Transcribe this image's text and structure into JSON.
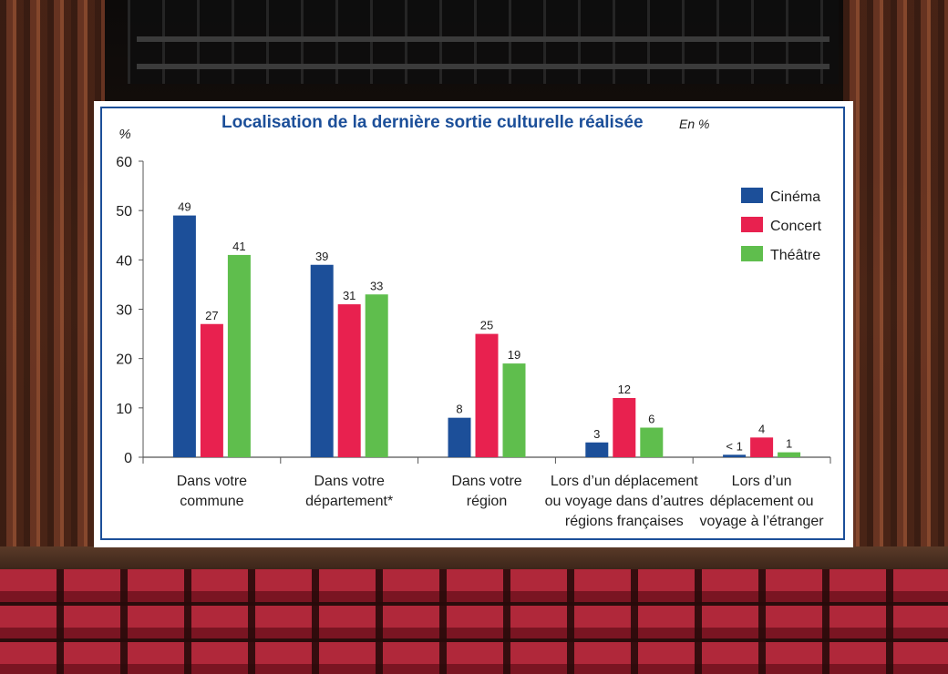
{
  "chart_data": {
    "type": "bar",
    "title": "Localisation de la dernière sortie culturelle réalisée",
    "subtitle": "En %",
    "ylabel": "%",
    "ylim": [
      0,
      60
    ],
    "yticks": [
      "0",
      "10",
      "20",
      "30",
      "40",
      "50",
      "60"
    ],
    "grid": false,
    "legend_position": "top-right",
    "categories": [
      [
        "Dans votre",
        "commune"
      ],
      [
        "Dans votre",
        "département*"
      ],
      [
        "Dans votre",
        "région"
      ],
      [
        "Lors d’un déplacement",
        "ou voyage dans d’autres",
        "régions françaises"
      ],
      [
        "Lors d’un",
        "déplacement ou",
        "voyage à l’étranger"
      ]
    ],
    "series": [
      {
        "name": "Cinéma",
        "color": "#1c4f99",
        "values": [
          49,
          39,
          8,
          3,
          0.5
        ],
        "labels": [
          "49",
          "39",
          "8",
          "3",
          "< 1"
        ]
      },
      {
        "name": "Concert",
        "color": "#e8214f",
        "values": [
          27,
          31,
          25,
          12,
          4
        ],
        "labels": [
          "27",
          "31",
          "25",
          "12",
          "4"
        ]
      },
      {
        "name": "Théâtre",
        "color": "#5fbe4d",
        "values": [
          41,
          33,
          19,
          6,
          1
        ],
        "labels": [
          "41",
          "33",
          "19",
          "6",
          "1"
        ]
      }
    ]
  }
}
